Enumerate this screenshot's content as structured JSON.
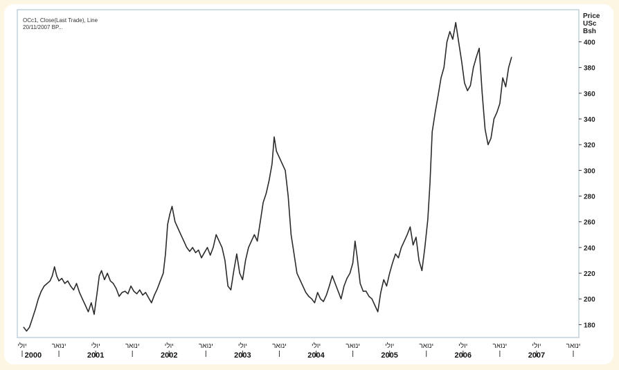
{
  "chart_data": {
    "type": "line",
    "info_lines": [
      "OCc1, Close(Last Trade), Line",
      "20/11/2007 BP..."
    ],
    "ylabel_lines": [
      "Price",
      "USc",
      "Bsh"
    ],
    "yticks": [
      180,
      200,
      220,
      240,
      260,
      280,
      300,
      320,
      340,
      360,
      380,
      400
    ],
    "ylim": [
      170,
      425
    ],
    "xlim": [
      2000.5,
      2008.0
    ],
    "grid": false,
    "month_labels": [
      {
        "x": 2000.5,
        "label": "יולי"
      },
      {
        "x": 2001.0,
        "label": "ינואר"
      },
      {
        "x": 2001.5,
        "label": "יולי"
      },
      {
        "x": 2002.0,
        "label": "ינואר"
      },
      {
        "x": 2002.5,
        "label": "יולי"
      },
      {
        "x": 2003.0,
        "label": "ינואר"
      },
      {
        "x": 2003.5,
        "label": "יולי"
      },
      {
        "x": 2004.0,
        "label": "ינואר"
      },
      {
        "x": 2004.5,
        "label": "יולי"
      },
      {
        "x": 2005.0,
        "label": "ינואר"
      },
      {
        "x": 2005.5,
        "label": "יולי"
      },
      {
        "x": 2006.0,
        "label": "ינואר"
      },
      {
        "x": 2006.5,
        "label": "יולי"
      },
      {
        "x": 2007.0,
        "label": "ינואר"
      },
      {
        "x": 2007.5,
        "label": "יולי"
      },
      {
        "x": 2008.0,
        "label": "ינואר"
      }
    ],
    "year_labels": [
      {
        "x": 2000.65,
        "label": "2000"
      },
      {
        "x": 2001.5,
        "label": "2001"
      },
      {
        "x": 2002.5,
        "label": "2002"
      },
      {
        "x": 2003.5,
        "label": "2003"
      },
      {
        "x": 2004.5,
        "label": "2004"
      },
      {
        "x": 2005.5,
        "label": "2005"
      },
      {
        "x": 2006.5,
        "label": "2006"
      },
      {
        "x": 2007.5,
        "label": "2007"
      }
    ],
    "series": [
      {
        "color": "#2a2a2a",
        "points": [
          [
            2000.52,
            178
          ],
          [
            2000.56,
            175
          ],
          [
            2000.6,
            178
          ],
          [
            2000.64,
            185
          ],
          [
            2000.68,
            192
          ],
          [
            2000.72,
            200
          ],
          [
            2000.76,
            206
          ],
          [
            2000.8,
            210
          ],
          [
            2000.84,
            212
          ],
          [
            2000.88,
            214
          ],
          [
            2000.91,
            218
          ],
          [
            2000.94,
            225
          ],
          [
            2000.97,
            218
          ],
          [
            2001.0,
            214
          ],
          [
            2001.04,
            216
          ],
          [
            2001.08,
            212
          ],
          [
            2001.12,
            214
          ],
          [
            2001.16,
            210
          ],
          [
            2001.2,
            207
          ],
          [
            2001.24,
            212
          ],
          [
            2001.28,
            205
          ],
          [
            2001.32,
            200
          ],
          [
            2001.36,
            195
          ],
          [
            2001.4,
            190
          ],
          [
            2001.44,
            197
          ],
          [
            2001.48,
            188
          ],
          [
            2001.52,
            205
          ],
          [
            2001.55,
            218
          ],
          [
            2001.58,
            222
          ],
          [
            2001.62,
            215
          ],
          [
            2001.66,
            220
          ],
          [
            2001.7,
            214
          ],
          [
            2001.74,
            212
          ],
          [
            2001.78,
            208
          ],
          [
            2001.82,
            202
          ],
          [
            2001.86,
            205
          ],
          [
            2001.9,
            206
          ],
          [
            2001.94,
            204
          ],
          [
            2001.98,
            210
          ],
          [
            2002.02,
            206
          ],
          [
            2002.06,
            204
          ],
          [
            2002.1,
            207
          ],
          [
            2002.14,
            203
          ],
          [
            2002.18,
            205
          ],
          [
            2002.22,
            201
          ],
          [
            2002.26,
            197
          ],
          [
            2002.3,
            203
          ],
          [
            2002.34,
            208
          ],
          [
            2002.38,
            214
          ],
          [
            2002.42,
            220
          ],
          [
            2002.45,
            235
          ],
          [
            2002.48,
            258
          ],
          [
            2002.51,
            266
          ],
          [
            2002.54,
            272
          ],
          [
            2002.58,
            260
          ],
          [
            2002.62,
            255
          ],
          [
            2002.66,
            250
          ],
          [
            2002.7,
            245
          ],
          [
            2002.74,
            240
          ],
          [
            2002.78,
            237
          ],
          [
            2002.82,
            240
          ],
          [
            2002.86,
            236
          ],
          [
            2002.9,
            238
          ],
          [
            2002.94,
            232
          ],
          [
            2002.98,
            236
          ],
          [
            2003.02,
            240
          ],
          [
            2003.06,
            234
          ],
          [
            2003.1,
            240
          ],
          [
            2003.14,
            250
          ],
          [
            2003.18,
            245
          ],
          [
            2003.22,
            240
          ],
          [
            2003.26,
            230
          ],
          [
            2003.3,
            210
          ],
          [
            2003.34,
            207
          ],
          [
            2003.38,
            222
          ],
          [
            2003.42,
            235
          ],
          [
            2003.46,
            220
          ],
          [
            2003.5,
            215
          ],
          [
            2003.54,
            230
          ],
          [
            2003.58,
            240
          ],
          [
            2003.62,
            245
          ],
          [
            2003.66,
            250
          ],
          [
            2003.7,
            245
          ],
          [
            2003.74,
            260
          ],
          [
            2003.78,
            275
          ],
          [
            2003.82,
            282
          ],
          [
            2003.86,
            292
          ],
          [
            2003.9,
            305
          ],
          [
            2003.93,
            326
          ],
          [
            2003.96,
            315
          ],
          [
            2004.0,
            310
          ],
          [
            2004.04,
            305
          ],
          [
            2004.08,
            300
          ],
          [
            2004.12,
            280
          ],
          [
            2004.16,
            250
          ],
          [
            2004.2,
            235
          ],
          [
            2004.24,
            220
          ],
          [
            2004.28,
            215
          ],
          [
            2004.32,
            210
          ],
          [
            2004.36,
            205
          ],
          [
            2004.4,
            202
          ],
          [
            2004.44,
            200
          ],
          [
            2004.48,
            197
          ],
          [
            2004.52,
            205
          ],
          [
            2004.56,
            200
          ],
          [
            2004.6,
            198
          ],
          [
            2004.64,
            203
          ],
          [
            2004.68,
            210
          ],
          [
            2004.72,
            218
          ],
          [
            2004.76,
            212
          ],
          [
            2004.8,
            206
          ],
          [
            2004.84,
            200
          ],
          [
            2004.88,
            210
          ],
          [
            2004.92,
            216
          ],
          [
            2004.96,
            220
          ],
          [
            2005.0,
            228
          ],
          [
            2005.03,
            245
          ],
          [
            2005.06,
            232
          ],
          [
            2005.1,
            212
          ],
          [
            2005.14,
            206
          ],
          [
            2005.18,
            206
          ],
          [
            2005.22,
            202
          ],
          [
            2005.26,
            200
          ],
          [
            2005.3,
            195
          ],
          [
            2005.34,
            190
          ],
          [
            2005.38,
            205
          ],
          [
            2005.42,
            215
          ],
          [
            2005.46,
            210
          ],
          [
            2005.5,
            220
          ],
          [
            2005.54,
            228
          ],
          [
            2005.58,
            235
          ],
          [
            2005.62,
            232
          ],
          [
            2005.66,
            240
          ],
          [
            2005.7,
            245
          ],
          [
            2005.74,
            250
          ],
          [
            2005.78,
            256
          ],
          [
            2005.82,
            242
          ],
          [
            2005.86,
            248
          ],
          [
            2005.9,
            230
          ],
          [
            2005.94,
            222
          ],
          [
            2005.98,
            240
          ],
          [
            2006.02,
            262
          ],
          [
            2006.05,
            290
          ],
          [
            2006.08,
            330
          ],
          [
            2006.12,
            345
          ],
          [
            2006.16,
            358
          ],
          [
            2006.2,
            372
          ],
          [
            2006.24,
            380
          ],
          [
            2006.28,
            400
          ],
          [
            2006.32,
            408
          ],
          [
            2006.36,
            402
          ],
          [
            2006.4,
            415
          ],
          [
            2006.44,
            400
          ],
          [
            2006.48,
            385
          ],
          [
            2006.52,
            368
          ],
          [
            2006.56,
            362
          ],
          [
            2006.6,
            366
          ],
          [
            2006.64,
            380
          ],
          [
            2006.68,
            388
          ],
          [
            2006.72,
            395
          ],
          [
            2006.76,
            360
          ],
          [
            2006.8,
            332
          ],
          [
            2006.84,
            320
          ],
          [
            2006.88,
            325
          ],
          [
            2006.92,
            340
          ],
          [
            2006.96,
            345
          ],
          [
            2007.0,
            352
          ],
          [
            2007.04,
            372
          ],
          [
            2007.08,
            365
          ],
          [
            2007.12,
            380
          ],
          [
            2007.16,
            388
          ]
        ]
      }
    ]
  }
}
